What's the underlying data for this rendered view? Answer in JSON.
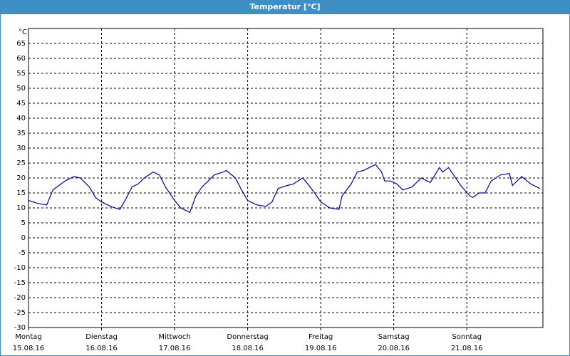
{
  "chart_data": {
    "type": "line",
    "title": "Temperatur [°C]",
    "y_label": "°C",
    "x": [
      0,
      3,
      6,
      8,
      10,
      12,
      15,
      17,
      20,
      22,
      24,
      27,
      30,
      32,
      34,
      36,
      38,
      41,
      43,
      45,
      48,
      50,
      53,
      55,
      57,
      61,
      64,
      65,
      68,
      70,
      72,
      75,
      78,
      80,
      82,
      85,
      87,
      90,
      91,
      94,
      96,
      99,
      102,
      103,
      106,
      108,
      110,
      113,
      114,
      116,
      117,
      119,
      121,
      123,
      126,
      129,
      132,
      135,
      136,
      138,
      141,
      142,
      145,
      146,
      148,
      150,
      152,
      155,
      158,
      159,
      162,
      165,
      168
    ],
    "values": [
      12.5,
      11.5,
      11,
      16,
      17.5,
      19,
      20.5,
      20,
      17,
      13.5,
      12,
      10.5,
      9.5,
      13,
      17,
      18,
      20,
      22,
      21,
      17,
      12.5,
      10,
      8.5,
      14,
      17,
      21,
      22,
      22.5,
      20,
      16,
      12.5,
      11,
      10.5,
      12,
      16.5,
      17.5,
      18,
      20,
      19,
      15,
      12,
      10,
      9.5,
      14,
      18,
      22,
      22.5,
      24,
      24.5,
      22,
      19,
      19,
      18,
      16,
      17,
      20,
      18.5,
      23.5,
      22,
      23.5,
      19,
      17.5,
      14,
      13.5,
      15,
      15,
      19,
      21,
      21.5,
      17.5,
      20.5,
      18,
      16.5
    ],
    "color": "#0000a0",
    "xlim": [
      0,
      169
    ],
    "ylim": [
      -30,
      70
    ],
    "yticks": [
      -30,
      -25,
      -20,
      -15,
      -10,
      -5,
      0,
      5,
      10,
      15,
      20,
      25,
      30,
      35,
      40,
      45,
      50,
      55,
      60,
      65
    ],
    "xticks": [
      {
        "value": 0,
        "label": "15.08.16"
      },
      {
        "value": 24,
        "label": "16.08.16"
      },
      {
        "value": 48,
        "label": "17.08.16"
      },
      {
        "value": 72,
        "label": "18.08.16"
      },
      {
        "value": 96,
        "label": "19.08.16"
      },
      {
        "value": 120,
        "label": "20.08.16"
      },
      {
        "value": 144,
        "label": "21.08.16"
      }
    ],
    "xtick_weekdays": [
      "Montag",
      "Dienstag",
      "Mittwoch",
      "Donnerstag",
      "Freitag",
      "Samstag",
      "Sonntag"
    ],
    "grid": true
  }
}
